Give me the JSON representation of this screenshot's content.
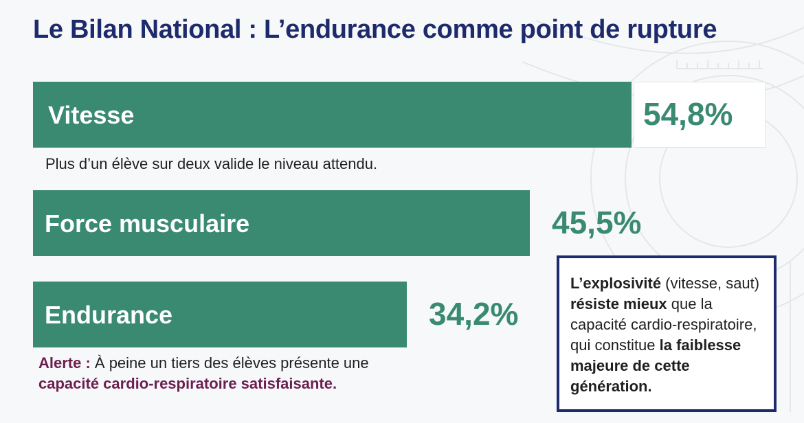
{
  "chart_data": {
    "type": "bar",
    "orientation": "horizontal",
    "title": "Le Bilan National : L’endurance comme point de rupture",
    "categories": [
      "Vitesse",
      "Force musculaire",
      "Endurance"
    ],
    "values": [
      54.8,
      45.5,
      34.2
    ],
    "value_labels": [
      "54,8%",
      "45,5%",
      "34,2%"
    ],
    "unit": "%",
    "grid": false,
    "legend": "none",
    "colors": {
      "bar": "#3a8a72",
      "title": "#1d2a6b",
      "alert": "#6b1f4f"
    }
  },
  "notes": {
    "vitesse": "Plus d’un élève sur deux valide le niveau attendu.",
    "alert_label": "Alerte :",
    "alert_text": " À peine un tiers des élèves présente une",
    "alert_emphasis": "capacité cardio-respiratoire satisfaisante."
  },
  "callout": {
    "p1_bold": "L’explosivité",
    "p1_text": " (vitesse, saut) ",
    "p2_bold": "résiste mieux",
    "p2_text": " que la capacité cardio-respiratoire, qui constitue ",
    "p3_bold": "la faiblesse majeure de cette génération."
  }
}
